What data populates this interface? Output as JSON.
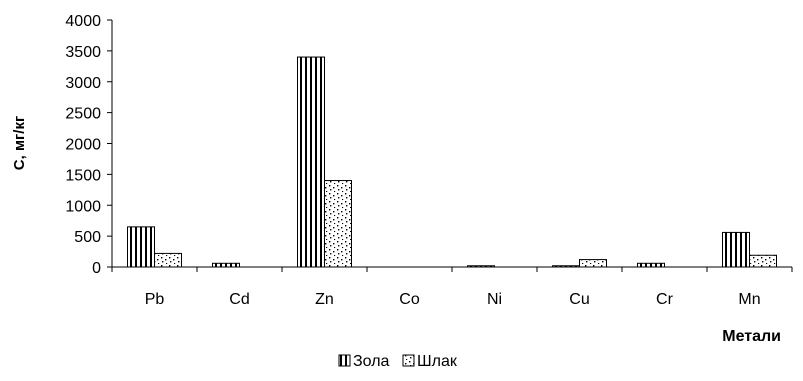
{
  "chart_data": {
    "type": "bar",
    "title": "",
    "xlabel": "Метали",
    "ylabel": "С, мг/кг",
    "categories": [
      "Pb",
      "Cd",
      "Zn",
      "Co",
      "Ni",
      "Cu",
      "Cr",
      "Mn"
    ],
    "ylim": [
      0,
      4000
    ],
    "yticks": [
      "0",
      "500",
      "1000",
      "1500",
      "2000",
      "2500",
      "3000",
      "3500",
      "4000"
    ],
    "grid": false,
    "legend_position": "bottom",
    "series": [
      {
        "name": "Зола",
        "pattern": "vertical-stripes",
        "values": [
          650,
          60,
          3400,
          0,
          20,
          20,
          60,
          560
        ]
      },
      {
        "name": "Шлак",
        "pattern": "dots",
        "values": [
          220,
          0,
          1400,
          0,
          0,
          120,
          0,
          190
        ]
      }
    ]
  }
}
